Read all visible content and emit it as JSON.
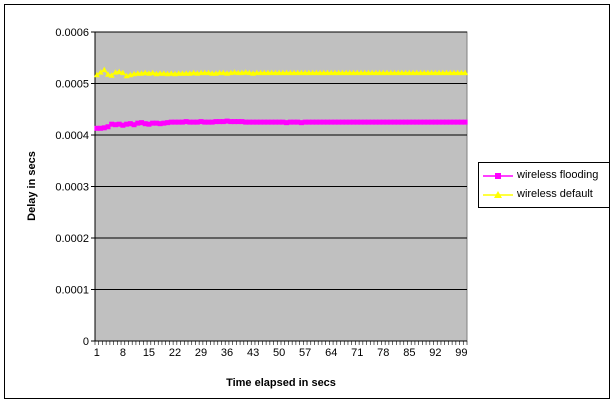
{
  "chart_data": {
    "type": "line",
    "title": "",
    "xlabel": "Time elapsed in secs",
    "ylabel": "Delay in secs",
    "ylim": [
      0,
      0.0006
    ],
    "yticks": [
      "0",
      "0.0001",
      "0.0002",
      "0.0003",
      "0.0004",
      "0.0005",
      "0.0006"
    ],
    "xticks": [
      "1",
      "8",
      "15",
      "22",
      "29",
      "36",
      "43",
      "50",
      "57",
      "64",
      "71",
      "78",
      "85",
      "92",
      "99"
    ],
    "x_range": [
      1,
      100
    ],
    "grid": true,
    "plot_background": "#c0c0c0",
    "legend_position": "right",
    "series": [
      {
        "name": "wireless flooding",
        "color": "#ff00ff",
        "marker": "square",
        "x": [
          1,
          2,
          3,
          4,
          5,
          6,
          7,
          8,
          9,
          10,
          11,
          12,
          13,
          14,
          15,
          16,
          17,
          18,
          19,
          20,
          21,
          22,
          23,
          24,
          25,
          26,
          27,
          28,
          29,
          30,
          31,
          32,
          33,
          34,
          35,
          36,
          37,
          38,
          39,
          40,
          41,
          42,
          43,
          44,
          45,
          46,
          47,
          48,
          49,
          50,
          51,
          52,
          53,
          54,
          55,
          56,
          57,
          58,
          59,
          60,
          61,
          62,
          63,
          64,
          65,
          66,
          67,
          68,
          69,
          70,
          71,
          72,
          73,
          74,
          75,
          76,
          77,
          78,
          79,
          80,
          81,
          82,
          83,
          84,
          85,
          86,
          87,
          88,
          89,
          90,
          91,
          92,
          93,
          94,
          95,
          96,
          97,
          98,
          99,
          100
        ],
        "values": [
          0.000413,
          0.000413,
          0.000414,
          0.000416,
          0.000421,
          0.00042,
          0.000421,
          0.000419,
          0.000421,
          0.000422,
          0.00042,
          0.000423,
          0.000424,
          0.000422,
          0.000421,
          0.000423,
          0.000423,
          0.000422,
          0.000423,
          0.000424,
          0.000425,
          0.000425,
          0.000425,
          0.000425,
          0.000426,
          0.000425,
          0.000425,
          0.000425,
          0.000426,
          0.000425,
          0.000425,
          0.000425,
          0.000426,
          0.000426,
          0.000426,
          0.000427,
          0.000426,
          0.000426,
          0.000426,
          0.000426,
          0.000425,
          0.000425,
          0.000425,
          0.000425,
          0.000425,
          0.000425,
          0.000425,
          0.000425,
          0.000425,
          0.000425,
          0.000425,
          0.000424,
          0.000425,
          0.000425,
          0.000425,
          0.000424,
          0.000425,
          0.000425,
          0.000425,
          0.000425,
          0.000425,
          0.000425,
          0.000425,
          0.000425,
          0.000425,
          0.000425,
          0.000425,
          0.000425,
          0.000425,
          0.000425,
          0.000425,
          0.000425,
          0.000425,
          0.000425,
          0.000425,
          0.000425,
          0.000425,
          0.000425,
          0.000425,
          0.000425,
          0.000425,
          0.000425,
          0.000425,
          0.000425,
          0.000425,
          0.000425,
          0.000425,
          0.000425,
          0.000425,
          0.000425,
          0.000425,
          0.000425,
          0.000425,
          0.000425,
          0.000425,
          0.000425,
          0.000425,
          0.000425,
          0.000425,
          0.000425
        ]
      },
      {
        "name": "wireless default",
        "color": "#ffff00",
        "marker": "triangle",
        "x": [
          1,
          2,
          3,
          4,
          5,
          6,
          7,
          8,
          9,
          10,
          11,
          12,
          13,
          14,
          15,
          16,
          17,
          18,
          19,
          20,
          21,
          22,
          23,
          24,
          25,
          26,
          27,
          28,
          29,
          30,
          31,
          32,
          33,
          34,
          35,
          36,
          37,
          38,
          39,
          40,
          41,
          42,
          43,
          44,
          45,
          46,
          47,
          48,
          49,
          50,
          51,
          52,
          53,
          54,
          55,
          56,
          57,
          58,
          59,
          60,
          61,
          62,
          63,
          64,
          65,
          66,
          67,
          68,
          69,
          70,
          71,
          72,
          73,
          74,
          75,
          76,
          77,
          78,
          79,
          80,
          81,
          82,
          83,
          84,
          85,
          86,
          87,
          88,
          89,
          90,
          91,
          92,
          93,
          94,
          95,
          96,
          97,
          98,
          99,
          100
        ],
        "values": [
          0.000517,
          0.000522,
          0.000527,
          0.000518,
          0.000516,
          0.000522,
          0.000523,
          0.000521,
          0.000515,
          0.000517,
          0.000519,
          0.00052,
          0.00052,
          0.000521,
          0.00052,
          0.000521,
          0.000519,
          0.00052,
          0.00052,
          0.000519,
          0.00052,
          0.000519,
          0.00052,
          0.00052,
          0.00052,
          0.00052,
          0.000521,
          0.00052,
          0.000521,
          0.000521,
          0.000521,
          0.00052,
          0.00052,
          0.000521,
          0.000521,
          0.00052,
          0.000521,
          0.000522,
          0.000521,
          0.000521,
          0.000522,
          0.000521,
          0.00052,
          0.000521,
          0.000521,
          0.000521,
          0.000521,
          0.000521,
          0.000521,
          0.000521,
          0.000521,
          0.000521,
          0.000521,
          0.000521,
          0.000521,
          0.000521,
          0.000521,
          0.000521,
          0.000521,
          0.000521,
          0.000521,
          0.000521,
          0.000521,
          0.000521,
          0.000521,
          0.000521,
          0.000521,
          0.000521,
          0.000521,
          0.000521,
          0.000521,
          0.000521,
          0.000521,
          0.000521,
          0.000521,
          0.000521,
          0.000521,
          0.000521,
          0.000521,
          0.000521,
          0.000521,
          0.000521,
          0.000521,
          0.000521,
          0.000521,
          0.000521,
          0.000521,
          0.000521,
          0.000521,
          0.000521,
          0.000521,
          0.000521,
          0.000521,
          0.000521,
          0.000521,
          0.000521,
          0.000521,
          0.000521,
          0.000521,
          0.000521
        ]
      }
    ]
  }
}
